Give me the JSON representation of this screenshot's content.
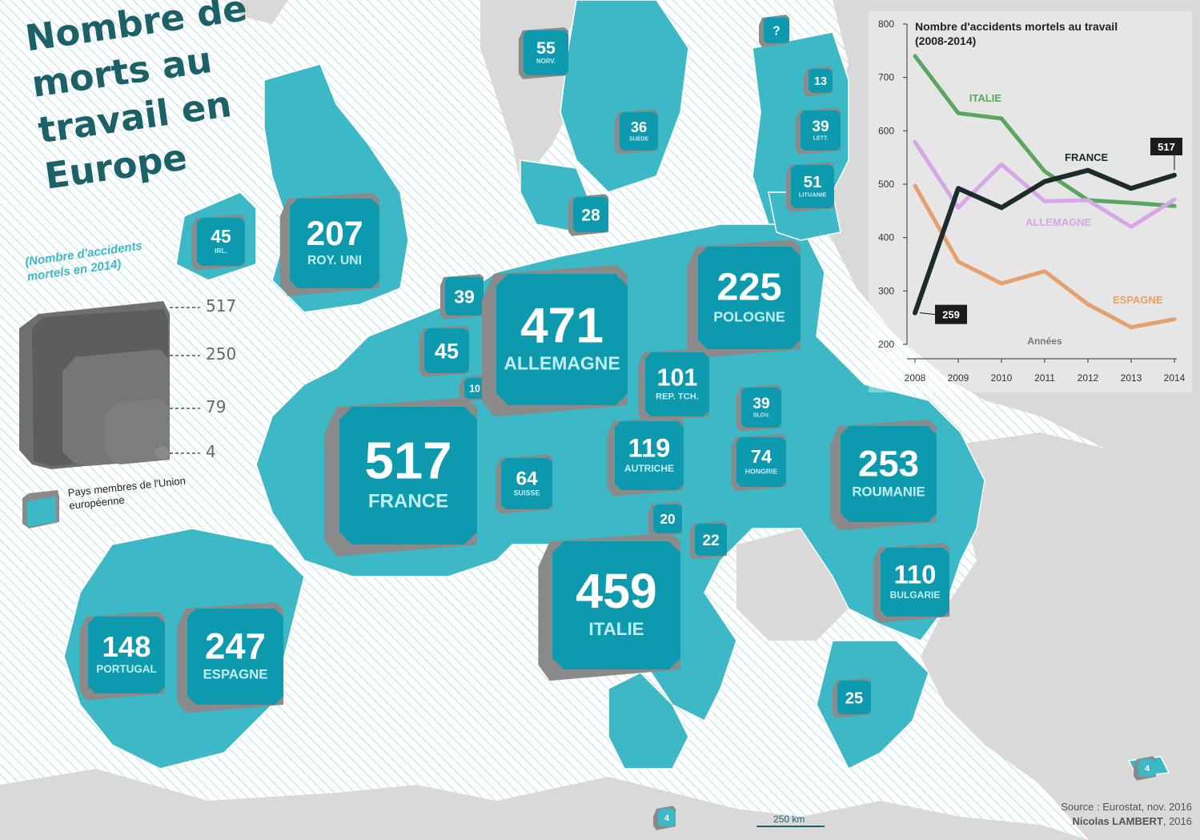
{
  "title": "Nombre de morts au travail en Europe",
  "subtitle": "(Nombre  d'accidents mortels en 2014)",
  "legend": {
    "values": [
      "517",
      "250",
      "79",
      "4"
    ],
    "eu_note": "Pays membres de l'Union européenne"
  },
  "colors": {
    "eu": "#3cb8c6",
    "box_face": "#0e9aae",
    "box_side": "#8a8a8a",
    "non_eu": "#d9d9d9",
    "title": "#1d6168"
  },
  "countries": [
    {
      "value": "55",
      "name": "NORV."
    },
    {
      "value": "?",
      "name": ""
    },
    {
      "value": "13",
      "name": ""
    },
    {
      "value": "39",
      "name": "LETT."
    },
    {
      "value": "51",
      "name": "LITUANIE"
    },
    {
      "value": "36",
      "name": "SUÈDE"
    },
    {
      "value": "28",
      "name": ""
    },
    {
      "value": "45",
      "name": "IRL."
    },
    {
      "value": "207",
      "name": "ROY. UNI"
    },
    {
      "value": "39",
      "name": ""
    },
    {
      "value": "45",
      "name": ""
    },
    {
      "value": "10",
      "name": ""
    },
    {
      "value": "471",
      "name": "ALLEMAGNE"
    },
    {
      "value": "225",
      "name": "POLOGNE"
    },
    {
      "value": "101",
      "name": "REP. TCH."
    },
    {
      "value": "39",
      "name": "SLOV."
    },
    {
      "value": "517",
      "name": "FRANCE"
    },
    {
      "value": "64",
      "name": "SUISSE"
    },
    {
      "value": "119",
      "name": "AUTRICHE"
    },
    {
      "value": "74",
      "name": "HONGRIE"
    },
    {
      "value": "253",
      "name": "ROUMANIE"
    },
    {
      "value": "20",
      "name": ""
    },
    {
      "value": "22",
      "name": ""
    },
    {
      "value": "459",
      "name": "ITALIE"
    },
    {
      "value": "110",
      "name": "BULGARIE"
    },
    {
      "value": "148",
      "name": "PORTUGAL"
    },
    {
      "value": "247",
      "name": "ESPAGNE"
    },
    {
      "value": "25",
      "name": ""
    },
    {
      "value": "4",
      "name": ""
    },
    {
      "value": "4",
      "name": ""
    }
  ],
  "chart_data": {
    "type": "line",
    "title": "Nombre d'accidents mortels au travail (2008-2014)",
    "xlabel": "Années",
    "ylabel": "",
    "x": [
      2008,
      2009,
      2010,
      2011,
      2012,
      2013,
      2014
    ],
    "ylim": [
      200,
      800
    ],
    "yticks": [
      200,
      300,
      400,
      500,
      600,
      700,
      800
    ],
    "series": [
      {
        "name": "ITALIE",
        "color": "#5aa660",
        "values": [
          740,
          633,
          623,
          524,
          470,
          465,
          459
        ]
      },
      {
        "name": "ALLEMAGNE",
        "color": "#d6a6e6",
        "values": [
          579,
          456,
          537,
          468,
          470,
          420,
          471
        ]
      },
      {
        "name": "ESPAGNE",
        "color": "#e4a06e",
        "values": [
          497,
          355,
          314,
          337,
          275,
          232,
          247
        ]
      },
      {
        "name": "FRANCE",
        "color": "#1c2b2b",
        "values": [
          259,
          492,
          456,
          505,
          526,
          492,
          517
        ]
      }
    ],
    "annotations": [
      "259",
      "517"
    ]
  },
  "scale": {
    "label": "250 km"
  },
  "source": {
    "line1": "Source : Eurostat, nov. 2016",
    "author": "Nicolas LAMBERT",
    "year": ", 2016"
  }
}
